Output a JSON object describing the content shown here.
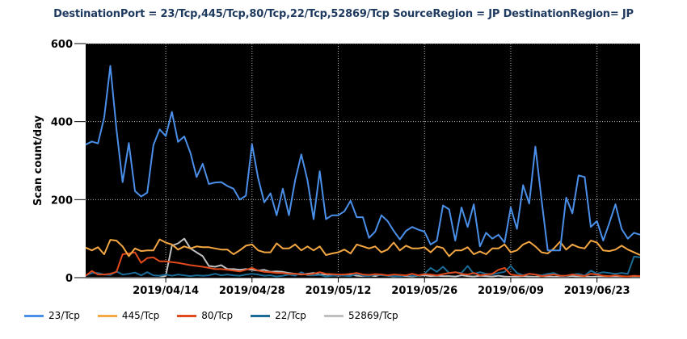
{
  "title": "DestinationPort = 23/Tcp,445/Tcp,80/Tcp,22/Tcp,52869/Tcp SourceRegion = JP DestinationRegion= JP",
  "chart_data": {
    "type": "line",
    "title": "DestinationPort = 23/Tcp,445/Tcp,80/Tcp,22/Tcp,52869/Tcp SourceRegion = JP DestinationRegion= JP",
    "xlabel": "",
    "ylabel": "Scan count/day",
    "ylim": [
      0,
      600
    ],
    "yticks": [
      0,
      200,
      400,
      600
    ],
    "x_start": "2019/04/01",
    "x_end": "2019/06/30",
    "xtick_labels": [
      "2019/04/14",
      "2019/04/28",
      "2019/05/12",
      "2019/05/26",
      "2019/06/09",
      "2019/06/23"
    ],
    "xtick_indices": [
      13,
      27,
      41,
      55,
      69,
      83
    ],
    "grid": true,
    "background": "#000000",
    "legend_position": "bottom",
    "series": [
      {
        "name": "23/Tcp",
        "color": "#4a8fe8",
        "values": [
          341,
          349,
          344,
          410,
          543,
          380,
          245,
          345,
          222,
          208,
          218,
          340,
          380,
          363,
          425,
          348,
          362,
          320,
          258,
          292,
          240,
          244,
          245,
          235,
          228,
          200,
          210,
          342,
          255,
          193,
          216,
          160,
          228,
          160,
          250,
          316,
          250,
          150,
          273,
          150,
          160,
          160,
          170,
          197,
          155,
          155,
          102,
          118,
          160,
          145,
          120,
          98,
          120,
          130,
          123,
          118,
          85,
          95,
          185,
          175,
          95,
          180,
          130,
          188,
          80,
          115,
          100,
          110,
          90,
          180,
          125,
          237,
          190,
          336,
          200,
          70,
          70,
          70,
          205,
          165,
          262,
          258,
          130,
          145,
          95,
          140,
          188,
          125,
          100,
          115,
          110
        ]
      },
      {
        "name": "445/Tcp",
        "color": "#f5a742",
        "values": [
          77,
          70,
          78,
          60,
          97,
          95,
          80,
          55,
          75,
          68,
          70,
          70,
          98,
          90,
          85,
          72,
          80,
          75,
          80,
          78,
          78,
          75,
          72,
          72,
          60,
          70,
          82,
          85,
          70,
          65,
          65,
          88,
          75,
          75,
          85,
          70,
          80,
          70,
          80,
          58,
          62,
          65,
          72,
          62,
          85,
          80,
          75,
          80,
          65,
          72,
          90,
          70,
          82,
          75,
          75,
          78,
          65,
          80,
          76,
          55,
          70,
          70,
          78,
          60,
          67,
          60,
          75,
          75,
          85,
          65,
          70,
          85,
          92,
          80,
          65,
          62,
          75,
          92,
          72,
          85,
          78,
          75,
          95,
          90,
          70,
          68,
          72,
          82,
          72,
          65,
          58
        ]
      },
      {
        "name": "80/Tcp",
        "color": "#e0491b",
        "values": [
          5,
          17,
          8,
          8,
          10,
          15,
          60,
          62,
          65,
          38,
          50,
          52,
          42,
          42,
          40,
          38,
          35,
          32,
          30,
          28,
          25,
          22,
          22,
          20,
          18,
          16,
          20,
          25,
          18,
          15,
          14,
          12,
          12,
          10,
          10,
          9,
          8,
          10,
          14,
          10,
          9,
          8,
          8,
          10,
          12,
          8,
          7,
          9,
          8,
          6,
          8,
          7,
          6,
          10,
          6,
          9,
          8,
          6,
          9,
          12,
          14,
          10,
          8,
          12,
          6,
          8,
          10,
          20,
          25,
          8,
          6,
          5,
          10,
          8,
          4,
          6,
          8,
          5,
          5,
          8,
          6,
          4,
          10,
          8,
          5,
          4,
          6,
          4,
          3,
          5,
          4
        ]
      },
      {
        "name": "22/Tcp",
        "color": "#1a6b96",
        "values": [
          5,
          12,
          12,
          8,
          7,
          16,
          8,
          10,
          13,
          6,
          14,
          6,
          5,
          8,
          5,
          8,
          6,
          4,
          6,
          5,
          6,
          10,
          6,
          8,
          6,
          5,
          8,
          10,
          8,
          5,
          6,
          3,
          5,
          8,
          5,
          14,
          6,
          6,
          7,
          3,
          5,
          6,
          5,
          4,
          10,
          5,
          4,
          8,
          6,
          5,
          4,
          3,
          6,
          5,
          5,
          10,
          25,
          15,
          28,
          12,
          14,
          12,
          30,
          10,
          14,
          10,
          8,
          12,
          15,
          30,
          12,
          6,
          10,
          8,
          6,
          10,
          12,
          5,
          4,
          8,
          10,
          5,
          18,
          10,
          14,
          12,
          10,
          12,
          10,
          54,
          52
        ]
      },
      {
        "name": "52869/Tcp",
        "color": "#c0c0c0",
        "values": [
          0,
          0,
          0,
          0,
          0,
          0,
          0,
          0,
          0,
          0,
          0,
          0,
          0,
          5,
          82,
          88,
          100,
          75,
          65,
          55,
          30,
          28,
          32,
          22,
          22,
          20,
          22,
          20,
          18,
          20,
          15,
          16,
          15,
          12,
          10,
          8,
          10,
          12,
          8,
          8,
          6,
          5,
          6,
          8,
          5,
          4,
          6,
          4,
          8,
          5,
          3,
          4,
          4,
          3,
          5,
          6,
          4,
          5,
          4,
          4,
          3,
          6,
          4,
          3,
          5,
          4,
          3,
          5,
          3,
          2,
          3,
          4,
          3,
          2,
          4,
          3,
          2,
          3,
          3,
          4,
          2,
          3,
          2,
          3,
          2,
          3,
          2,
          2,
          3,
          2,
          2
        ]
      }
    ]
  },
  "axes": {
    "ylabel": "Scan count/day",
    "yticks": [
      "0",
      "200",
      "400",
      "600"
    ],
    "xticks": [
      "2019/04/14",
      "2019/04/28",
      "2019/05/12",
      "2019/05/26",
      "2019/06/09",
      "2019/06/23"
    ]
  },
  "legend": [
    {
      "label": "23/Tcp",
      "color": "#4a8fe8"
    },
    {
      "label": "445/Tcp",
      "color": "#f5a742"
    },
    {
      "label": "80/Tcp",
      "color": "#e0491b"
    },
    {
      "label": "22/Tcp",
      "color": "#1a6b96"
    },
    {
      "label": "52869/Tcp",
      "color": "#c0c0c0"
    }
  ]
}
